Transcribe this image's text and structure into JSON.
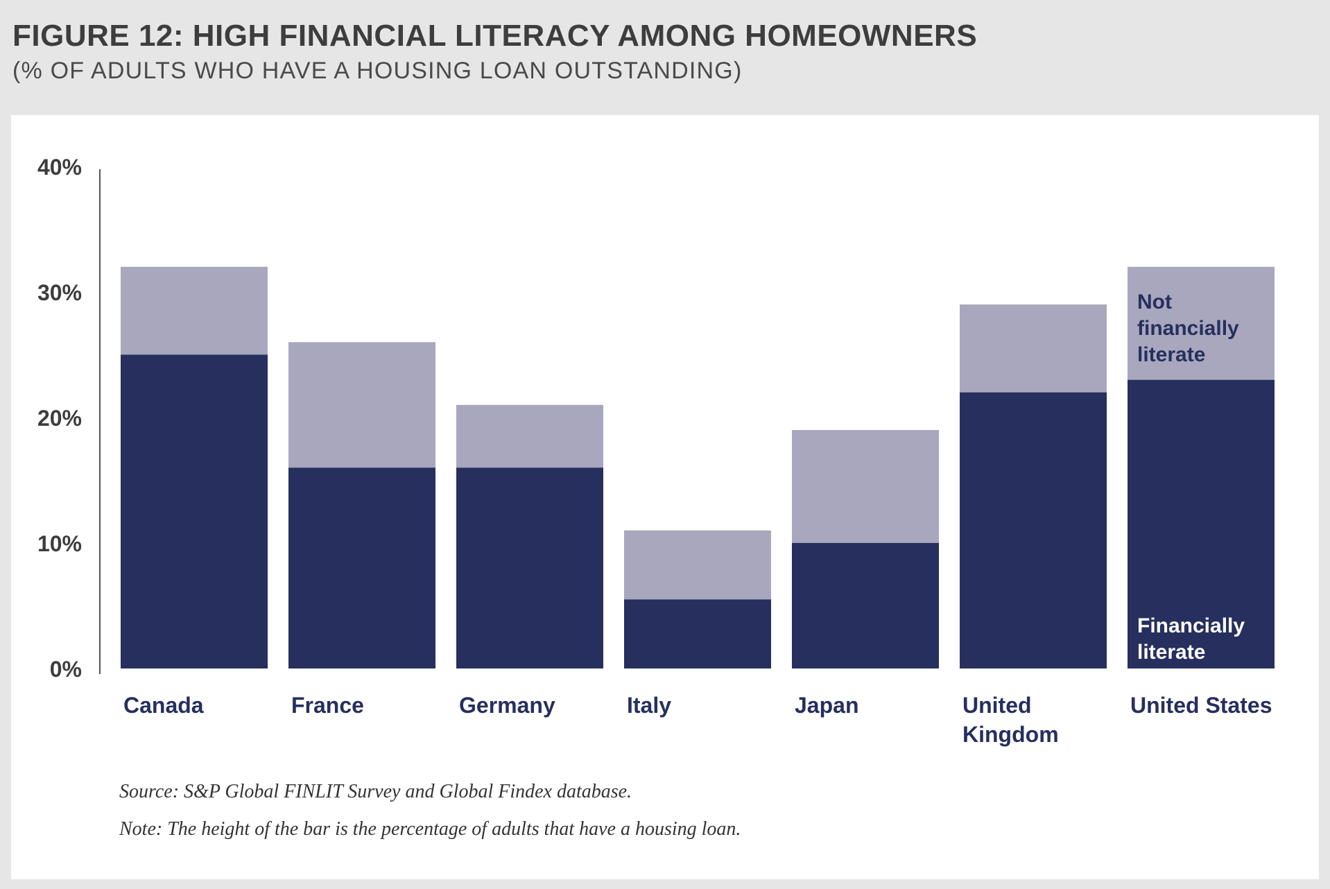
{
  "header": {
    "title": "FIGURE 12: HIGH FINANCIAL LITERACY AMONG HOMEOWNERS",
    "subtitle": "(% OF ADULTS WHO HAVE A HOUSING LOAN OUTSTANDING)"
  },
  "notes": {
    "source": "Source: S&P Global FINLIT Survey and Global Findex database.",
    "note": "Note: The height of the bar is the percentage of adults that have a housing loan."
  },
  "chart_data": {
    "type": "bar",
    "stacked": true,
    "title": "FIGURE 12: HIGH FINANCIAL LITERACY AMONG HOMEOWNERS",
    "subtitle": "(% OF ADULTS WHO HAVE A HOUSING LOAN OUTSTANDING)",
    "categories": [
      [
        "Canada"
      ],
      [
        "France"
      ],
      [
        "Germany"
      ],
      [
        "Italy"
      ],
      [
        "Japan"
      ],
      [
        "United",
        "Kingdom"
      ],
      [
        "United States"
      ]
    ],
    "series": [
      {
        "name": "Financially literate",
        "color": "#262f5e",
        "values": [
          25,
          16,
          16,
          5.5,
          10,
          22,
          23
        ]
      },
      {
        "name": "Not financially literate",
        "color": "#a8a7bd",
        "values": [
          7,
          10,
          5,
          5.5,
          9,
          7,
          9
        ]
      }
    ],
    "series_label_lines": {
      "Financially literate": [
        "Financially",
        "literate"
      ],
      "Not financially literate": [
        "Not",
        "financially",
        "literate"
      ]
    },
    "yticks": [
      "0%",
      "10%",
      "20%",
      "30%",
      "40%"
    ],
    "ytick_values": [
      0,
      10,
      20,
      30,
      40
    ],
    "ylim": [
      0,
      40
    ],
    "grid": false,
    "legend": "inline labels inside last bar"
  }
}
